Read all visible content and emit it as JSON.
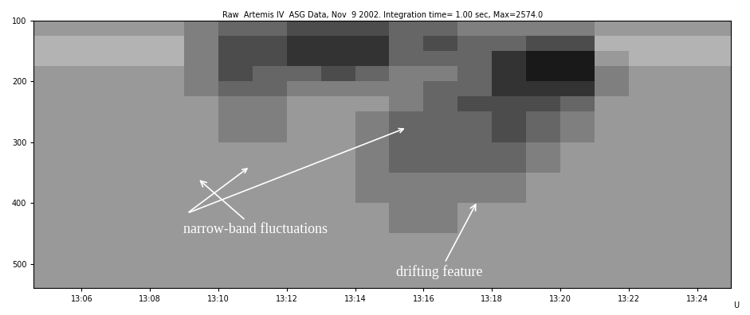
{
  "chart_data": {
    "type": "spectrogram",
    "title": "Raw  Artemis IV  ASG Data, Nov  9 2002. Integration time= 1.00 sec, Max=2574.0",
    "xlabel": "U",
    "xlim": [
      4.6,
      25
    ],
    "xticks": [
      {
        "value": 6,
        "label": "13:06"
      },
      {
        "value": 8,
        "label": "13:08"
      },
      {
        "value": 10,
        "label": "13:10"
      },
      {
        "value": 12,
        "label": "13:12"
      },
      {
        "value": 14,
        "label": "13:14"
      },
      {
        "value": 16,
        "label": "13:16"
      },
      {
        "value": 18,
        "label": "13:18"
      },
      {
        "value": 20,
        "label": "13:20"
      },
      {
        "value": 22,
        "label": "13:22"
      },
      {
        "value": 24,
        "label": "13:24"
      }
    ],
    "ylim": [
      100,
      540
    ],
    "yticks": [
      100,
      200,
      300,
      400,
      500
    ],
    "grid": false,
    "x_edges": [
      4.6,
      5,
      6,
      7,
      8,
      9,
      10,
      11,
      12,
      13,
      14,
      15,
      16,
      17,
      18,
      19,
      20,
      21,
      22,
      23,
      24,
      25
    ],
    "y_edges": [
      100,
      125,
      150,
      175,
      200,
      225,
      250,
      300,
      350,
      400,
      450,
      500,
      540
    ],
    "color_range": [
      0,
      10
    ],
    "cells": [
      [
        4,
        4,
        4,
        4,
        4,
        5,
        6,
        6,
        7,
        7,
        7,
        6,
        6,
        5,
        5,
        5,
        5,
        4,
        4,
        4,
        4
      ],
      [
        3,
        3,
        3,
        3,
        3,
        5,
        7,
        7,
        8,
        8,
        8,
        6,
        7,
        6,
        6,
        7,
        7,
        3,
        3,
        3,
        3
      ],
      [
        3,
        3,
        3,
        3,
        3,
        5,
        7,
        7,
        8,
        8,
        8,
        6,
        6,
        6,
        8,
        9,
        9,
        4,
        3,
        3,
        3
      ],
      [
        4,
        4,
        4,
        4,
        4,
        5,
        7,
        6,
        6,
        7,
        6,
        5,
        5,
        6,
        8,
        9,
        9,
        5,
        4,
        4,
        4
      ],
      [
        4,
        4,
        4,
        4,
        4,
        5,
        6,
        6,
        5,
        5,
        5,
        5,
        6,
        6,
        8,
        8,
        8,
        5,
        4,
        4,
        4
      ],
      [
        4,
        4,
        4,
        4,
        4,
        4,
        5,
        5,
        4,
        4,
        4,
        5,
        6,
        7,
        7,
        7,
        6,
        4,
        4,
        4,
        4
      ],
      [
        4,
        4,
        4,
        4,
        4,
        4,
        5,
        5,
        4,
        4,
        5,
        6,
        6,
        6,
        7,
        6,
        5,
        4,
        4,
        4,
        4
      ],
      [
        4,
        4,
        4,
        4,
        4,
        4,
        4,
        4,
        4,
        4,
        5,
        6,
        6,
        6,
        6,
        5,
        4,
        4,
        4,
        4,
        4
      ],
      [
        4,
        4,
        4,
        4,
        4,
        4,
        4,
        4,
        4,
        4,
        5,
        5,
        5,
        5,
        5,
        4,
        4,
        4,
        4,
        4,
        4
      ],
      [
        4,
        4,
        4,
        4,
        4,
        4,
        4,
        4,
        4,
        4,
        4,
        5,
        5,
        4,
        4,
        4,
        4,
        4,
        4,
        4,
        4
      ],
      [
        4,
        4,
        4,
        4,
        4,
        4,
        4,
        4,
        4,
        4,
        4,
        4,
        4,
        4,
        4,
        4,
        4,
        4,
        4,
        4,
        4
      ],
      [
        4,
        4,
        4,
        4,
        4,
        4,
        4,
        4,
        4,
        4,
        4,
        4,
        4,
        4,
        4,
        4,
        4,
        4,
        4,
        4,
        4
      ]
    ],
    "annotations": [
      "narrow-band fluctuations",
      "drifting feature"
    ]
  }
}
